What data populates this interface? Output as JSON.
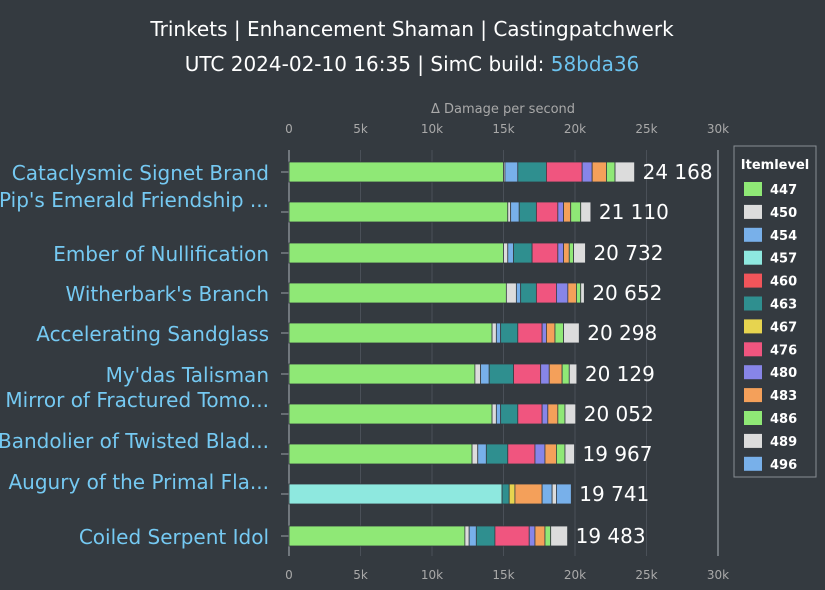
{
  "header": {
    "title": "Trinkets | Enhancement Shaman | Castingpatchwerk",
    "subtitle_prefix": "UTC 2024-02-10 16:35 | SimC build: ",
    "build": "58bda36"
  },
  "chart_data": {
    "type": "bar",
    "orientation": "horizontal",
    "stacked": true,
    "xlabel": "Δ Damage per second",
    "xlim": [
      0,
      30000
    ],
    "xticks": [
      0,
      5000,
      10000,
      15000,
      20000,
      25000,
      30000
    ],
    "xtick_labels": [
      "0",
      "5k",
      "10k",
      "15k",
      "20k",
      "25k",
      "30k"
    ],
    "categories": [
      "Cataclysmic Signet Brand",
      "Pip's Emerald Friendship ...",
      "Ember of Nullification",
      "Witherbark's Branch",
      "Accelerating Sandglass",
      "My'das Talisman",
      "Mirror of Fractured Tomo...",
      "Bandolier of Twisted Blad...",
      "Augury of the Primal Fla...",
      "Coiled Serpent Idol"
    ],
    "totals": [
      "24 168",
      "21 110",
      "20 732",
      "20 652",
      "20 298",
      "20 129",
      "20 052",
      "19 967",
      "19 741",
      "19 483"
    ],
    "legend": {
      "title": "Itemlevel",
      "position": "right",
      "items": [
        {
          "label": "447",
          "color": "#8fe876"
        },
        {
          "label": "450",
          "color": "#dcdcdc"
        },
        {
          "label": "454",
          "color": "#78b0ea"
        },
        {
          "label": "457",
          "color": "#8ee8df"
        },
        {
          "label": "460",
          "color": "#f1555a"
        },
        {
          "label": "463",
          "color": "#2f8f8f"
        },
        {
          "label": "467",
          "color": "#e7d44f"
        },
        {
          "label": "476",
          "color": "#f0557f"
        },
        {
          "label": "480",
          "color": "#8785e8"
        },
        {
          "label": "483",
          "color": "#f4a05a"
        },
        {
          "label": "486",
          "color": "#8fe876"
        },
        {
          "label": "489",
          "color": "#dcdcdc"
        },
        {
          "label": "496",
          "color": "#78b0ea"
        }
      ]
    },
    "rows": [
      {
        "label": "Cataclysmic Signet Brand",
        "segments": [
          {
            "c": "#8fe876",
            "v": 15000
          },
          {
            "c": "#dcdcdc",
            "v": 100
          },
          {
            "c": "#78b0ea",
            "v": 900
          },
          {
            "c": "#2f8f8f",
            "v": 2000
          },
          {
            "c": "#f0557f",
            "v": 2500
          },
          {
            "c": "#8785e8",
            "v": 700
          },
          {
            "c": "#f4a05a",
            "v": 1000
          },
          {
            "c": "#8fe876",
            "v": 600
          },
          {
            "c": "#dcdcdc",
            "v": 1368
          }
        ]
      },
      {
        "label": "Pip's Emerald Friendship ...",
        "segments": [
          {
            "c": "#8fe876",
            "v": 15300
          },
          {
            "c": "#dcdcdc",
            "v": 200
          },
          {
            "c": "#78b0ea",
            "v": 600
          },
          {
            "c": "#2f8f8f",
            "v": 1200
          },
          {
            "c": "#f0557f",
            "v": 1500
          },
          {
            "c": "#8785e8",
            "v": 400
          },
          {
            "c": "#f4a05a",
            "v": 500
          },
          {
            "c": "#8fe876",
            "v": 700
          },
          {
            "c": "#dcdcdc",
            "v": 710
          }
        ]
      },
      {
        "label": "Ember of Nullification",
        "segments": [
          {
            "c": "#8fe876",
            "v": 15000
          },
          {
            "c": "#dcdcdc",
            "v": 300
          },
          {
            "c": "#78b0ea",
            "v": 400
          },
          {
            "c": "#2f8f8f",
            "v": 1300
          },
          {
            "c": "#f0557f",
            "v": 1800
          },
          {
            "c": "#8785e8",
            "v": 400
          },
          {
            "c": "#f4a05a",
            "v": 400
          },
          {
            "c": "#8fe876",
            "v": 300
          },
          {
            "c": "#dcdcdc",
            "v": 832
          }
        ]
      },
      {
        "label": "Witherbark's Branch",
        "segments": [
          {
            "c": "#8fe876",
            "v": 15200
          },
          {
            "c": "#dcdcdc",
            "v": 700
          },
          {
            "c": "#78b0ea",
            "v": 300
          },
          {
            "c": "#2f8f8f",
            "v": 1100
          },
          {
            "c": "#f0557f",
            "v": 1400
          },
          {
            "c": "#8785e8",
            "v": 800
          },
          {
            "c": "#f4a05a",
            "v": 600
          },
          {
            "c": "#8fe876",
            "v": 300
          },
          {
            "c": "#dcdcdc",
            "v": 252
          }
        ]
      },
      {
        "label": "Accelerating Sandglass",
        "segments": [
          {
            "c": "#8fe876",
            "v": 14200
          },
          {
            "c": "#dcdcdc",
            "v": 300
          },
          {
            "c": "#78b0ea",
            "v": 300
          },
          {
            "c": "#2f8f8f",
            "v": 1200
          },
          {
            "c": "#f0557f",
            "v": 1700
          },
          {
            "c": "#8785e8",
            "v": 300
          },
          {
            "c": "#f4a05a",
            "v": 600
          },
          {
            "c": "#8fe876",
            "v": 600
          },
          {
            "c": "#dcdcdc",
            "v": 1098
          }
        ]
      },
      {
        "label": "My'das Talisman",
        "segments": [
          {
            "c": "#8fe876",
            "v": 13000
          },
          {
            "c": "#dcdcdc",
            "v": 400
          },
          {
            "c": "#78b0ea",
            "v": 600
          },
          {
            "c": "#2f8f8f",
            "v": 1700
          },
          {
            "c": "#f0557f",
            "v": 1900
          },
          {
            "c": "#8785e8",
            "v": 600
          },
          {
            "c": "#f4a05a",
            "v": 900
          },
          {
            "c": "#8fe876",
            "v": 500
          },
          {
            "c": "#dcdcdc",
            "v": 529
          }
        ]
      },
      {
        "label": "Mirror of Fractured Tomo...",
        "segments": [
          {
            "c": "#8fe876",
            "v": 14200
          },
          {
            "c": "#dcdcdc",
            "v": 300
          },
          {
            "c": "#78b0ea",
            "v": 300
          },
          {
            "c": "#2f8f8f",
            "v": 1200
          },
          {
            "c": "#f0557f",
            "v": 1700
          },
          {
            "c": "#8785e8",
            "v": 400
          },
          {
            "c": "#f4a05a",
            "v": 700
          },
          {
            "c": "#8fe876",
            "v": 500
          },
          {
            "c": "#dcdcdc",
            "v": 752
          }
        ]
      },
      {
        "label": "Bandolier of Twisted Blad...",
        "segments": [
          {
            "c": "#8fe876",
            "v": 12800
          },
          {
            "c": "#dcdcdc",
            "v": 400
          },
          {
            "c": "#78b0ea",
            "v": 600
          },
          {
            "c": "#2f8f8f",
            "v": 1500
          },
          {
            "c": "#f0557f",
            "v": 1900
          },
          {
            "c": "#8785e8",
            "v": 700
          },
          {
            "c": "#f4a05a",
            "v": 800
          },
          {
            "c": "#8fe876",
            "v": 600
          },
          {
            "c": "#dcdcdc",
            "v": 667
          }
        ]
      },
      {
        "label": "Augury of the Primal Fla...",
        "segments": [
          {
            "c": "#8ee8df",
            "v": 14900
          },
          {
            "c": "#2f8f8f",
            "v": 500
          },
          {
            "c": "#e7d44f",
            "v": 400
          },
          {
            "c": "#f4a05a",
            "v": 1900
          },
          {
            "c": "#78b0ea",
            "v": 700
          },
          {
            "c": "#dcdcdc",
            "v": 300
          },
          {
            "c": "#78b0ea",
            "v": 1041
          }
        ]
      },
      {
        "label": "Coiled Serpent Idol",
        "segments": [
          {
            "c": "#8fe876",
            "v": 12300
          },
          {
            "c": "#dcdcdc",
            "v": 300
          },
          {
            "c": "#78b0ea",
            "v": 500
          },
          {
            "c": "#2f8f8f",
            "v": 1300
          },
          {
            "c": "#f0557f",
            "v": 2400
          },
          {
            "c": "#8785e8",
            "v": 400
          },
          {
            "c": "#f4a05a",
            "v": 700
          },
          {
            "c": "#8fe876",
            "v": 400
          },
          {
            "c": "#dcdcdc",
            "v": 1183
          }
        ]
      }
    ]
  }
}
